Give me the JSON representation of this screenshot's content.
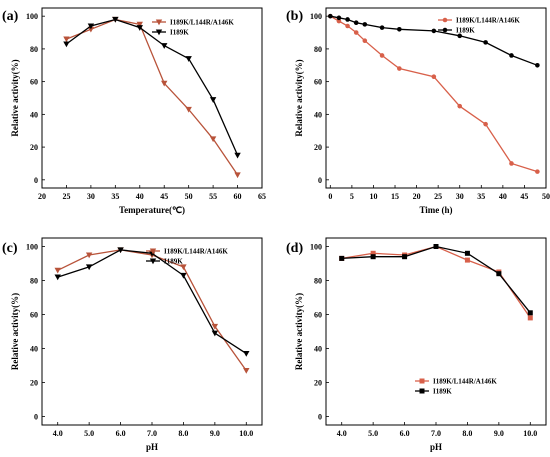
{
  "chart_data": [
    {
      "panel": "(a)",
      "type": "line",
      "xlabel": "Temperature(℃)",
      "ylabel": "Relative activity(%)",
      "xlim": [
        20,
        65
      ],
      "ylim": [
        -5,
        105
      ],
      "xticks": [
        "20",
        "25",
        "30",
        "35",
        "40",
        "45",
        "50",
        "55",
        "60",
        "65"
      ],
      "yticks": [
        "0",
        "20",
        "40",
        "60",
        "80",
        "100"
      ],
      "legend_position": "top-right",
      "series": [
        {
          "name": "I189K/L144R/A146K",
          "color": "#b8533a",
          "marker": "triangle-down",
          "x": [
            25,
            30,
            35,
            40,
            45,
            50,
            55,
            60
          ],
          "y": [
            86,
            92,
            98,
            95,
            59,
            43,
            25,
            3
          ]
        },
        {
          "name": "I189K",
          "color": "#000000",
          "marker": "triangle-down",
          "x": [
            25,
            30,
            35,
            40,
            45,
            50,
            55,
            60
          ],
          "y": [
            83,
            94,
            98,
            93,
            82,
            74,
            49,
            15
          ]
        }
      ]
    },
    {
      "panel": "(b)",
      "type": "line",
      "xlabel": "Time (h)",
      "ylabel": "Relative activity(%)",
      "xlim": [
        -1,
        50
      ],
      "ylim": [
        -5,
        105
      ],
      "xticks": [
        "0",
        "5",
        "10",
        "15",
        "20",
        "25",
        "30",
        "35",
        "40",
        "45",
        "50"
      ],
      "yticks": [
        "0",
        "20",
        "40",
        "60",
        "80",
        "100"
      ],
      "legend_position": "top-right",
      "series": [
        {
          "name": "I189K/L144R/A146K",
          "color": "#d8604a",
          "marker": "circle",
          "x": [
            0,
            2,
            4,
            6,
            8,
            12,
            16,
            24,
            30,
            36,
            42,
            48
          ],
          "y": [
            100,
            97,
            94,
            90,
            85,
            76,
            68,
            63,
            45,
            34,
            10,
            5
          ]
        },
        {
          "name": "I189K",
          "color": "#000000",
          "marker": "circle",
          "x": [
            0,
            2,
            4,
            6,
            8,
            12,
            16,
            24,
            30,
            36,
            42,
            48
          ],
          "y": [
            100,
            99,
            98,
            96,
            95,
            93,
            92,
            91,
            88,
            84,
            76,
            70
          ]
        }
      ]
    },
    {
      "panel": "(c)",
      "type": "line",
      "xlabel": "pH",
      "ylabel": "Relative activity(%)",
      "xlim": [
        3.5,
        10.5
      ],
      "ylim": [
        -5,
        105
      ],
      "xticks": [
        "4.0",
        "5.0",
        "6.0",
        "7.0",
        "8.0",
        "9.0",
        "10.0"
      ],
      "yticks": [
        "0",
        "20",
        "40",
        "60",
        "80",
        "100"
      ],
      "legend_position": "top-right",
      "series": [
        {
          "name": "I189K/L144R/A146K",
          "color": "#b8533a",
          "marker": "triangle-down",
          "x": [
            4,
            5,
            6,
            7,
            8,
            9,
            10
          ],
          "y": [
            86,
            95,
            98,
            95,
            88,
            53,
            27
          ]
        },
        {
          "name": "I189K",
          "color": "#000000",
          "marker": "triangle-down",
          "x": [
            4,
            5,
            6,
            7,
            8,
            9,
            10
          ],
          "y": [
            82,
            88,
            98,
            96,
            83,
            49,
            37
          ]
        }
      ]
    },
    {
      "panel": "(d)",
      "type": "line",
      "xlabel": "pH",
      "ylabel": "Relative activity(%)",
      "xlim": [
        3.5,
        10.5
      ],
      "ylim": [
        -5,
        105
      ],
      "xticks": [
        "4.0",
        "5.0",
        "6.0",
        "7.0",
        "8.0",
        "9.0",
        "10.0"
      ],
      "yticks": [
        "0",
        "20",
        "40",
        "60",
        "80",
        "100"
      ],
      "legend_position": "lower-middle",
      "series": [
        {
          "name": "I189K/L144R/A146K",
          "color": "#d8604a",
          "marker": "square",
          "x": [
            4,
            5,
            6,
            7,
            8,
            9,
            10
          ],
          "y": [
            93,
            96,
            95,
            100,
            92,
            85,
            58
          ]
        },
        {
          "name": "I189K",
          "color": "#000000",
          "marker": "square",
          "x": [
            4,
            5,
            6,
            7,
            8,
            9,
            10
          ],
          "y": [
            93,
            94,
            94,
            100,
            96,
            84,
            61
          ]
        }
      ]
    }
  ]
}
